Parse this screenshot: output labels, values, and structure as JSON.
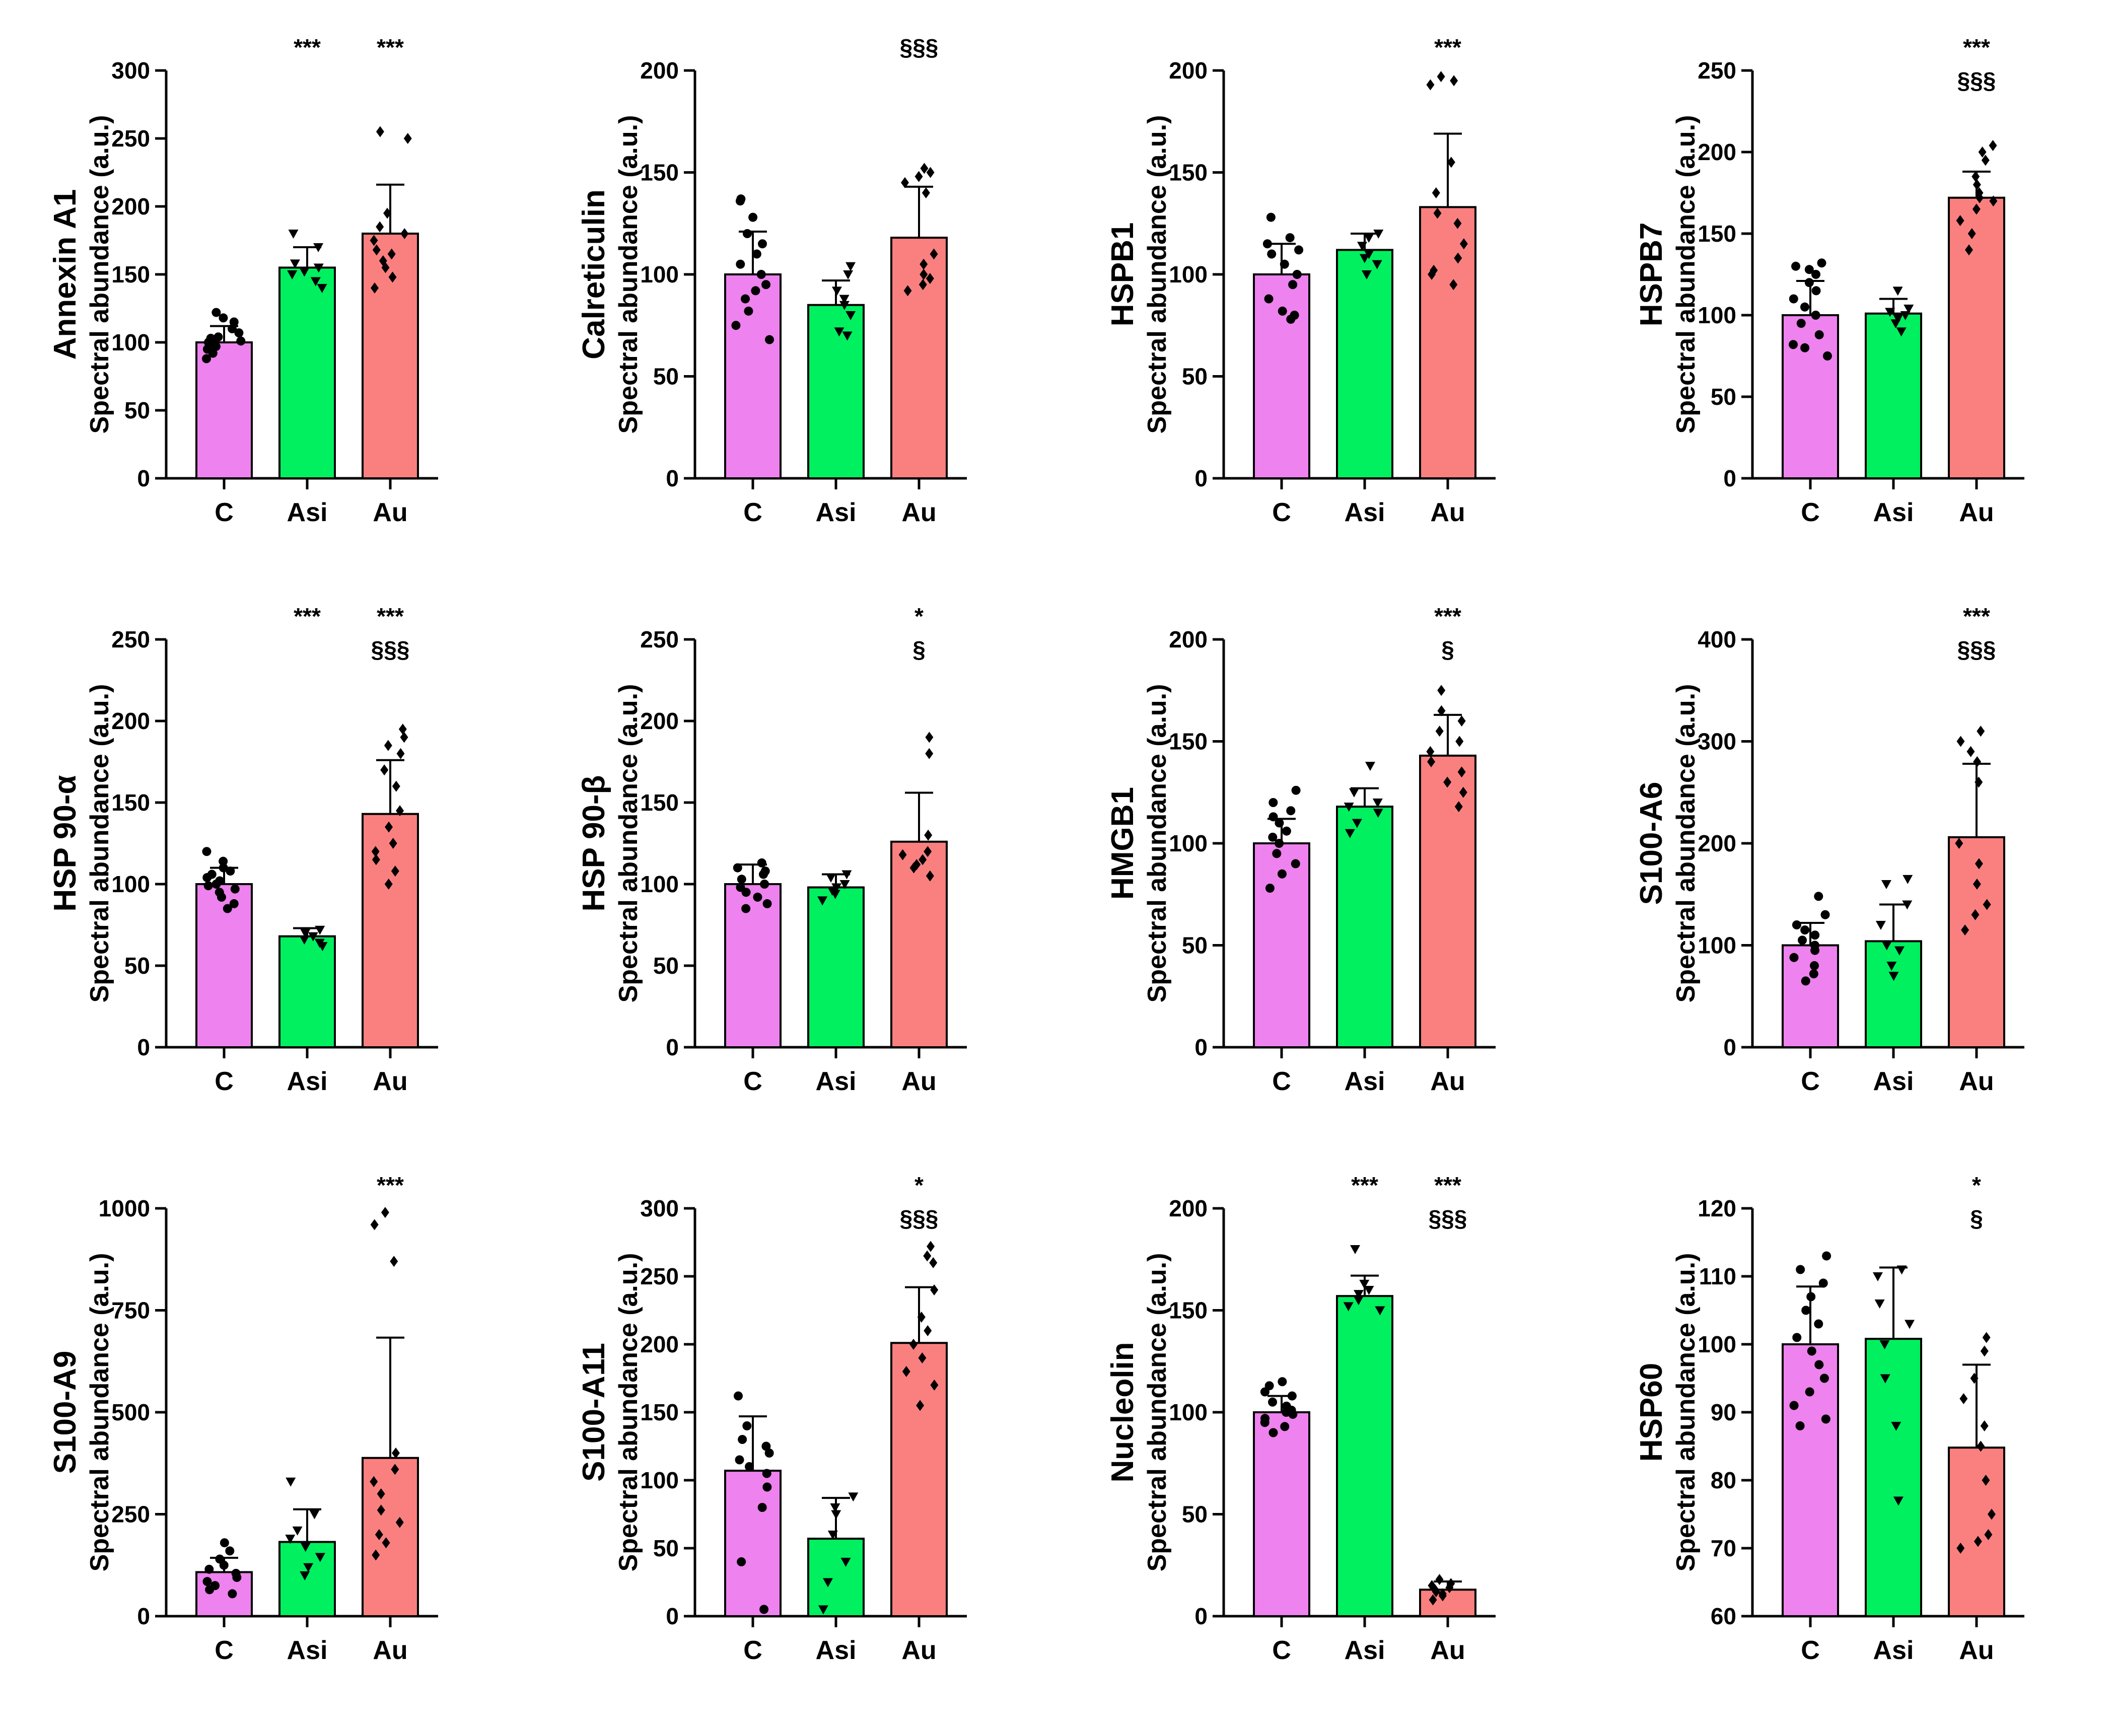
{
  "figure": {
    "ylabel": "Spectral abundance (a.u.)",
    "group_colors": {
      "C": "#ee82ee",
      "Asi": "#00f060",
      "Au": "#fa8080"
    }
  },
  "chart_data": [
    {
      "type": "bar",
      "title": "Annexin A1",
      "ylabel": "Spectral abundance (a.u.)",
      "categories": [
        "C",
        "Asi",
        "Au"
      ],
      "values": [
        100,
        155,
        180
      ],
      "errors": [
        12,
        15,
        36
      ],
      "ylim": [
        0,
        300
      ],
      "yticks": [
        0,
        50,
        100,
        150,
        200,
        250,
        300
      ],
      "significance": [
        [],
        [
          "***"
        ],
        [
          "***"
        ]
      ],
      "points": [
        [
          88,
          92,
          95,
          97,
          99,
          100,
          101,
          103,
          104,
          107,
          110,
          115,
          118,
          122
        ],
        [
          140,
          145,
          150,
          152,
          155,
          158,
          170,
          180
        ],
        [
          140,
          148,
          155,
          160,
          165,
          168,
          175,
          180,
          185,
          195,
          250,
          255
        ]
      ]
    },
    {
      "type": "bar",
      "title": "Calreticulin",
      "ylabel": "Spectral abundance (a.u.)",
      "categories": [
        "C",
        "Asi",
        "Au"
      ],
      "values": [
        100,
        85,
        118
      ],
      "errors": [
        21,
        12,
        25
      ],
      "ylim": [
        0,
        200
      ],
      "yticks": [
        0,
        50,
        100,
        150,
        200
      ],
      "significance": [
        [],
        [],
        [
          "§§§"
        ]
      ],
      "points": [
        [
          68,
          75,
          82,
          88,
          92,
          95,
          100,
          105,
          110,
          115,
          120,
          128,
          136,
          137
        ],
        [
          70,
          72,
          80,
          85,
          88,
          92,
          100,
          104
        ],
        [
          92,
          95,
          98,
          100,
          105,
          110,
          140,
          145,
          148,
          150,
          152
        ]
      ]
    },
    {
      "type": "bar",
      "title": "HSPB1",
      "ylabel": "Spectral abundance (a.u.)",
      "categories": [
        "C",
        "Asi",
        "Au"
      ],
      "values": [
        100,
        112,
        133
      ],
      "errors": [
        15,
        8,
        36
      ],
      "ylim": [
        0,
        200
      ],
      "yticks": [
        0,
        50,
        100,
        150,
        200
      ],
      "significance": [
        [],
        [],
        [
          "***"
        ]
      ],
      "points": [
        [
          78,
          80,
          82,
          88,
          95,
          100,
          105,
          110,
          112,
          115,
          118,
          128
        ],
        [
          100,
          105,
          108,
          110,
          114,
          118,
          120
        ],
        [
          95,
          100,
          102,
          108,
          115,
          125,
          130,
          140,
          155,
          195,
          197,
          193
        ]
      ]
    },
    {
      "type": "bar",
      "title": "HSPB7",
      "ylabel": "Spectral abundance (a.u.)",
      "categories": [
        "C",
        "Asi",
        "Au"
      ],
      "values": [
        100,
        101,
        172
      ],
      "errors": [
        21,
        9,
        16
      ],
      "ylim": [
        0,
        250
      ],
      "yticks": [
        0,
        50,
        100,
        150,
        200,
        250
      ],
      "significance": [
        [],
        [],
        [
          "***",
          "§§§"
        ]
      ],
      "points": [
        [
          75,
          80,
          82,
          88,
          95,
          100,
          105,
          110,
          115,
          120,
          125,
          128,
          130,
          132
        ],
        [
          90,
          95,
          98,
          100,
          102,
          104,
          115
        ],
        [
          140,
          150,
          158,
          165,
          170,
          172,
          175,
          180,
          185,
          195,
          200,
          204
        ]
      ]
    },
    {
      "type": "bar",
      "title": "HSP 90-α",
      "ylabel": "Spectral abundance (a.u.)",
      "categories": [
        "C",
        "Asi",
        "Au"
      ],
      "values": [
        100,
        68,
        143
      ],
      "errors": [
        10,
        5,
        33
      ],
      "ylim": [
        0,
        250
      ],
      "yticks": [
        0,
        50,
        100,
        150,
        200,
        250
      ],
      "significance": [
        [],
        [
          "***"
        ],
        [
          "***",
          "§§§"
        ]
      ],
      "points": [
        [
          85,
          88,
          92,
          95,
          97,
          99,
          100,
          102,
          104,
          106,
          108,
          110,
          114,
          120
        ],
        [
          62,
          64,
          66,
          68,
          70,
          72
        ],
        [
          100,
          108,
          115,
          120,
          125,
          135,
          145,
          160,
          170,
          180,
          185,
          190,
          195
        ]
      ]
    },
    {
      "type": "bar",
      "title": "HSP 90-β",
      "ylabel": "Spectral abundance (a.u.)",
      "categories": [
        "C",
        "Asi",
        "Au"
      ],
      "values": [
        100,
        98,
        126
      ],
      "errors": [
        12,
        8,
        30
      ],
      "ylim": [
        0,
        250
      ],
      "yticks": [
        0,
        50,
        100,
        150,
        200,
        250
      ],
      "significance": [
        [],
        [],
        [
          "*",
          "§"
        ]
      ],
      "points": [
        [
          85,
          88,
          92,
          95,
          98,
          100,
          103,
          106,
          108,
          110,
          113
        ],
        [
          90,
          94,
          96,
          98,
          100,
          104,
          106
        ],
        [
          105,
          110,
          112,
          115,
          118,
          120,
          130,
          180,
          190
        ]
      ]
    },
    {
      "type": "bar",
      "title": "HMGB1",
      "ylabel": "Spectral abundance (a.u.)",
      "categories": [
        "C",
        "Asi",
        "Au"
      ],
      "values": [
        100,
        118,
        143
      ],
      "errors": [
        12,
        9,
        20
      ],
      "ylim": [
        0,
        200
      ],
      "yticks": [
        0,
        50,
        100,
        150,
        200
      ],
      "significance": [
        [],
        [],
        [
          "***",
          "§"
        ]
      ],
      "points": [
        [
          78,
          85,
          90,
          95,
          100,
          103,
          106,
          110,
          113,
          116,
          120,
          126
        ],
        [
          105,
          110,
          115,
          118,
          120,
          125,
          138
        ],
        [
          118,
          125,
          130,
          135,
          140,
          145,
          150,
          155,
          160,
          165,
          175
        ]
      ]
    },
    {
      "type": "bar",
      "title": "S100-A6",
      "ylabel": "Spectral abundance (a.u.)",
      "categories": [
        "C",
        "Asi",
        "Au"
      ],
      "values": [
        100,
        104,
        206
      ],
      "errors": [
        22,
        36,
        72
      ],
      "ylim": [
        0,
        400
      ],
      "yticks": [
        0,
        100,
        200,
        300,
        400
      ],
      "significance": [
        [],
        [],
        [
          "***",
          "§§§"
        ]
      ],
      "points": [
        [
          65,
          72,
          80,
          88,
          95,
          100,
          105,
          110,
          115,
          120,
          130,
          148
        ],
        [
          70,
          80,
          95,
          100,
          120,
          140,
          160,
          165
        ],
        [
          115,
          130,
          140,
          160,
          180,
          200,
          260,
          280,
          290,
          300,
          310
        ]
      ]
    },
    {
      "type": "bar",
      "title": "S100-A9",
      "ylabel": "Spectral abundance (a.u.)",
      "categories": [
        "C",
        "Asi",
        "Au"
      ],
      "values": [
        108,
        182,
        388
      ],
      "errors": [
        35,
        80,
        295
      ],
      "ylim": [
        0,
        1000
      ],
      "yticks": [
        0,
        250,
        500,
        750,
        1000
      ],
      "significance": [
        [],
        [],
        [
          "***"
        ]
      ],
      "points": [
        [
          55,
          65,
          75,
          85,
          95,
          105,
          115,
          125,
          140,
          160,
          180
        ],
        [
          100,
          120,
          145,
          170,
          190,
          210,
          250,
          330
        ],
        [
          150,
          180,
          200,
          230,
          260,
          300,
          330,
          360,
          400,
          870,
          960,
          990
        ]
      ]
    },
    {
      "type": "bar",
      "title": "S100-A11",
      "ylabel": "Spectral abundance (a.u.)",
      "categories": [
        "C",
        "Asi",
        "Au"
      ],
      "values": [
        107,
        57,
        201
      ],
      "errors": [
        40,
        30,
        41
      ],
      "ylim": [
        0,
        300
      ],
      "yticks": [
        0,
        50,
        100,
        150,
        200,
        250,
        300
      ],
      "significance": [
        [],
        [],
        [
          "*",
          "§§§"
        ]
      ],
      "points": [
        [
          5,
          40,
          80,
          95,
          105,
          110,
          115,
          120,
          125,
          130,
          140,
          162
        ],
        [
          5,
          25,
          40,
          60,
          75,
          80,
          88
        ],
        [
          155,
          170,
          180,
          190,
          200,
          210,
          220,
          240,
          260,
          265,
          272
        ]
      ]
    },
    {
      "type": "bar",
      "title": "Nucleolin",
      "ylabel": "Spectral abundance (a.u.)",
      "categories": [
        "C",
        "Asi",
        "Au"
      ],
      "values": [
        100,
        157,
        13
      ],
      "errors": [
        8,
        10,
        4
      ],
      "ylim": [
        0,
        200
      ],
      "yticks": [
        0,
        50,
        100,
        150,
        200
      ],
      "significance": [
        [],
        [
          "***"
        ],
        [
          "***",
          "§§§"
        ]
      ],
      "points": [
        [
          90,
          93,
          95,
          97,
          99,
          100,
          101,
          103,
          105,
          108,
          110,
          113,
          115
        ],
        [
          150,
          152,
          155,
          158,
          160,
          163,
          180
        ],
        [
          8,
          10,
          11,
          12,
          13,
          14,
          15,
          16,
          18
        ]
      ]
    },
    {
      "type": "bar",
      "title": "HSP60",
      "ylabel": "Spectral abundance (a.u.)",
      "categories": [
        "C",
        "Asi",
        "Au"
      ],
      "values": [
        100,
        100.8,
        84.8
      ],
      "errors": [
        8.5,
        10.5,
        12.2
      ],
      "ylim": [
        60,
        120
      ],
      "yticks": [
        60,
        70,
        80,
        90,
        100,
        110,
        120
      ],
      "significance": [
        [],
        [],
        [
          "*",
          "§"
        ]
      ],
      "points": [
        [
          88,
          89,
          91,
          93,
          95,
          97,
          99,
          101,
          103,
          105,
          107,
          109,
          111,
          113
        ],
        [
          77,
          88,
          95,
          100,
          103,
          106,
          110,
          111
        ],
        [
          70,
          71,
          72,
          75,
          80,
          85,
          88,
          92,
          95,
          99,
          101
        ]
      ]
    }
  ]
}
